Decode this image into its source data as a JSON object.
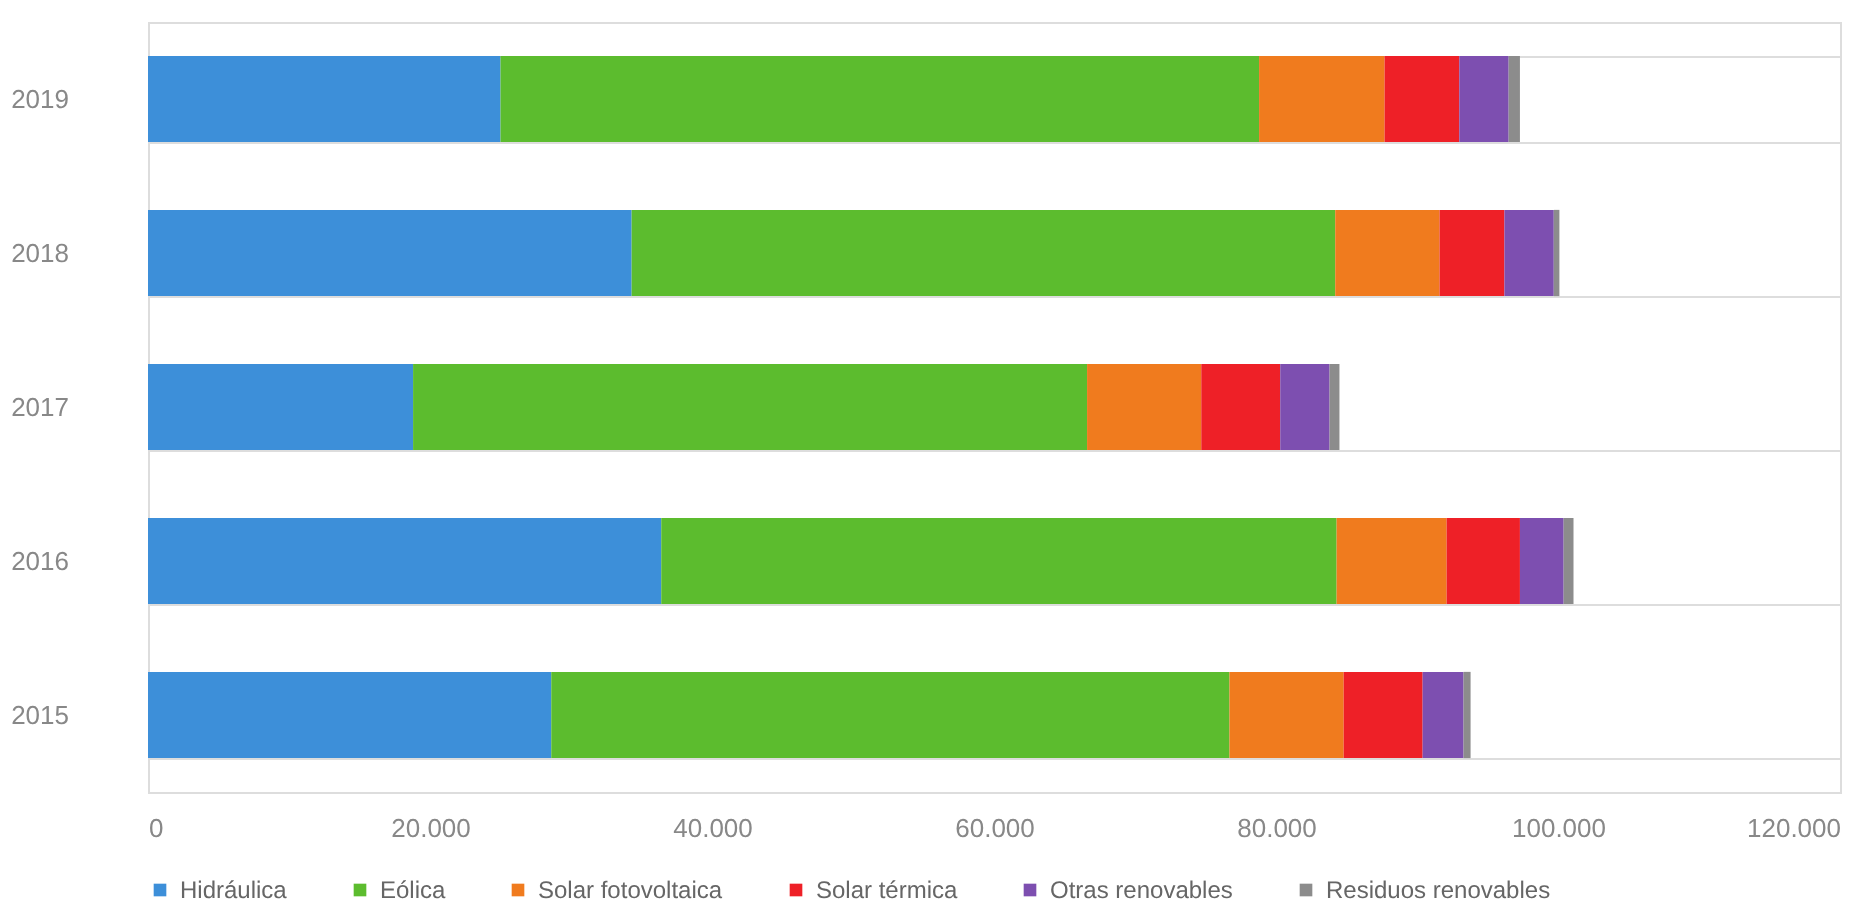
{
  "chart_data": {
    "type": "bar",
    "orientation": "horizontal",
    "stacked": true,
    "categories": [
      "2019",
      "2018",
      "2017",
      "2016",
      "2015"
    ],
    "series": [
      {
        "name": "Hidráulica",
        "color": "#3d8fd9",
        "values": [
          25000,
          34300,
          18800,
          36400,
          28600
        ]
      },
      {
        "name": "Eólica",
        "color": "#5cbc2e",
        "values": [
          53800,
          49900,
          47800,
          47900,
          48100
        ]
      },
      {
        "name": "Solar fotovoltaica",
        "color": "#f07b1e",
        "values": [
          8900,
          7400,
          8100,
          7800,
          8100
        ]
      },
      {
        "name": "Solar térmica",
        "color": "#ee2027",
        "values": [
          5300,
          4600,
          5600,
          5200,
          5600
        ]
      },
      {
        "name": "Otras renovables",
        "color": "#7d4fb0",
        "values": [
          3500,
          3500,
          3500,
          3100,
          2900
        ]
      },
      {
        "name": "Residuos renovables",
        "color": "#8c8c8c",
        "values": [
          800,
          400,
          700,
          700,
          500
        ]
      }
    ],
    "xlim": [
      0,
      120000
    ],
    "xticks": [
      0,
      {
        "value": 20000,
        "label": "20.000"
      },
      {
        "value": 40000,
        "label": "40.000"
      },
      {
        "value": 60000,
        "label": "60.000"
      },
      {
        "value": 80000,
        "label": "80.000"
      },
      {
        "value": 100000,
        "label": "100.000"
      },
      {
        "value": 120000,
        "label": "120.000"
      }
    ],
    "grid": "y",
    "legend": "bottom"
  }
}
